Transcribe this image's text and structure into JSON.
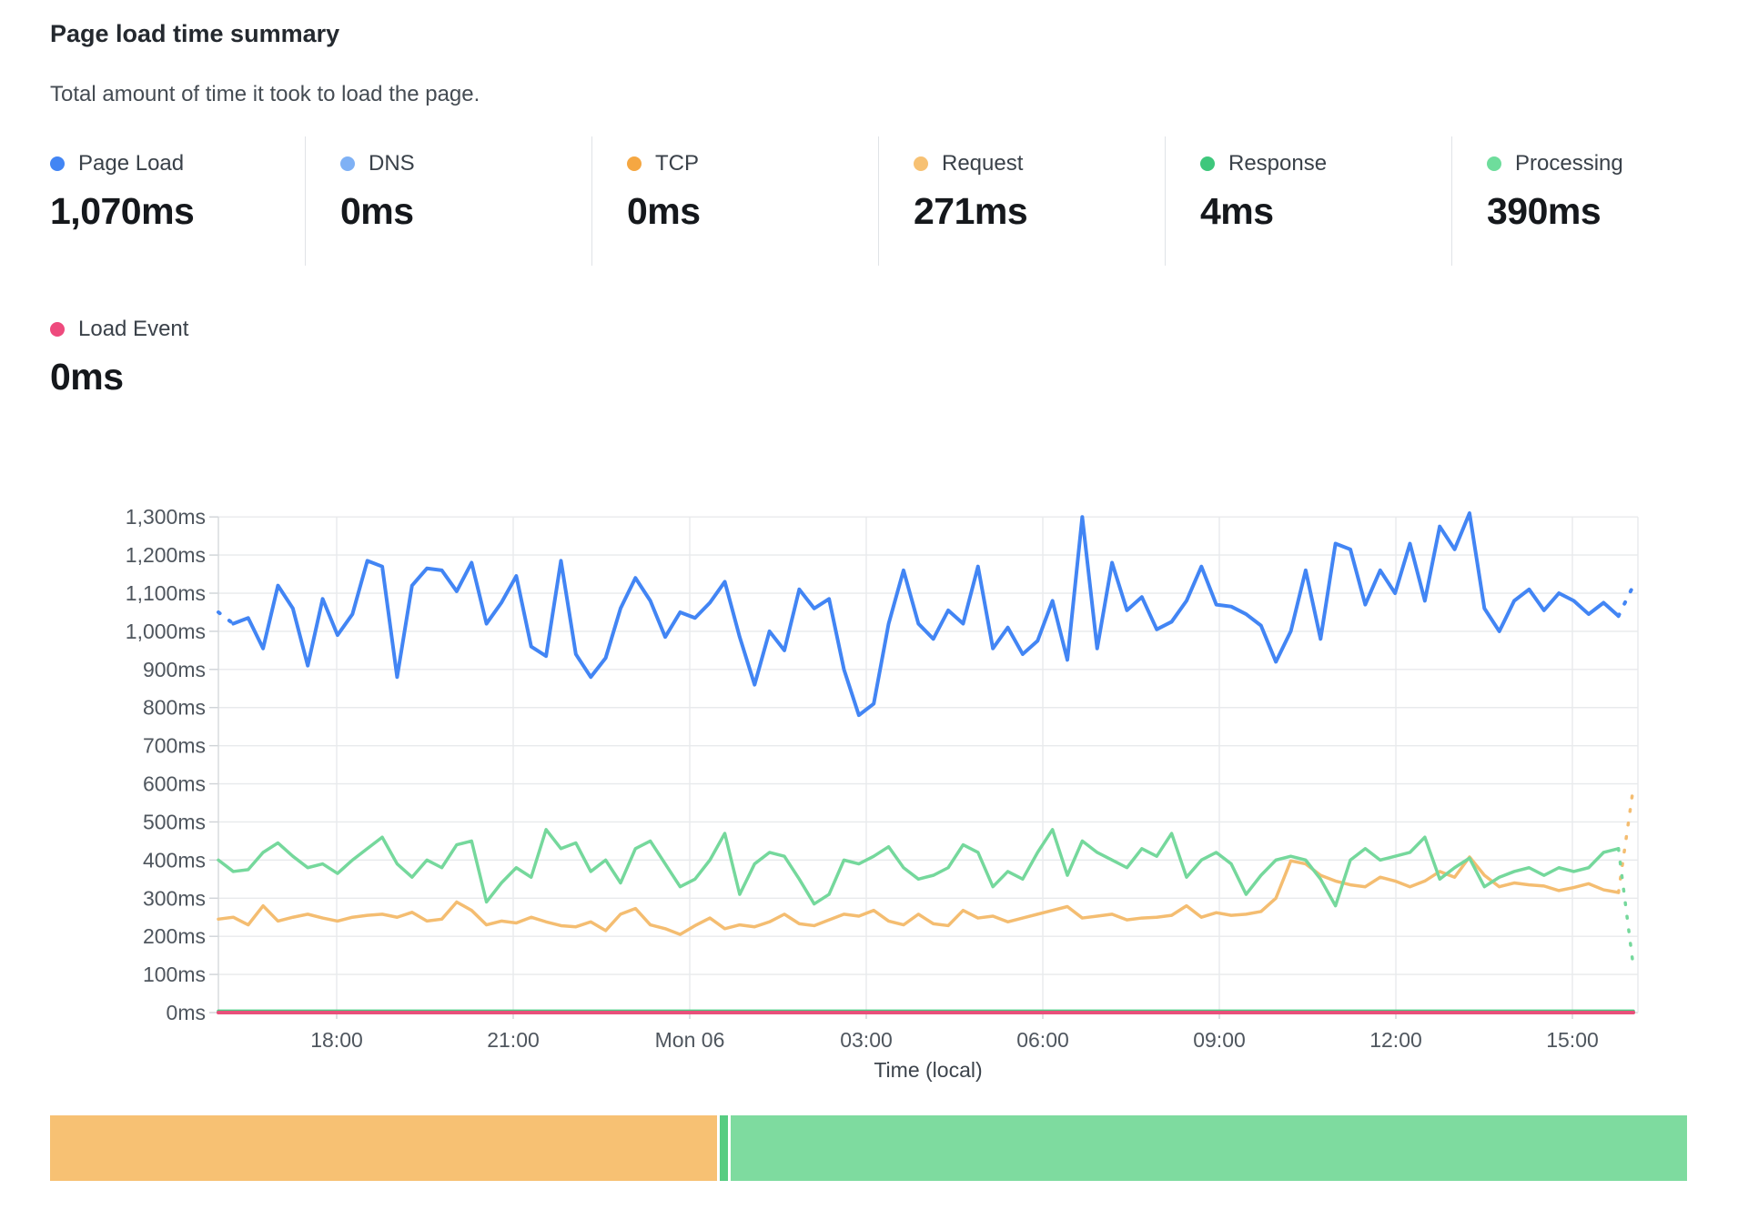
{
  "header": {
    "title": "Page load time summary",
    "subtitle": "Total amount of time it took to load the page."
  },
  "metrics": [
    {
      "label": "Page Load",
      "value": "1,070ms",
      "color": "#4285f4"
    },
    {
      "label": "DNS",
      "value": "0ms",
      "color": "#7fb1f5"
    },
    {
      "label": "TCP",
      "value": "0ms",
      "color": "#f5a742"
    },
    {
      "label": "Request",
      "value": "271ms",
      "color": "#f7c173"
    },
    {
      "label": "Response",
      "value": "4ms",
      "color": "#3ec77c"
    },
    {
      "label": "Processing",
      "value": "390ms",
      "color": "#6edd9c"
    }
  ],
  "load_event": {
    "label": "Load Event",
    "value": "0ms",
    "color": "#ee4a7d"
  },
  "chart_data": {
    "type": "line",
    "title": "Page load time summary",
    "xlabel": "Time (local)",
    "ylabel": "",
    "ylim": [
      0,
      1300
    ],
    "grid": true,
    "legend_position": "top",
    "y_ticks": [
      "0ms",
      "100ms",
      "200ms",
      "300ms",
      "400ms",
      "500ms",
      "600ms",
      "700ms",
      "800ms",
      "900ms",
      "1,000ms",
      "1,100ms",
      "1,200ms",
      "1,300ms"
    ],
    "x_ticks": [
      "18:00",
      "21:00",
      "Mon 06",
      "03:00",
      "06:00",
      "09:00",
      "12:00",
      "15:00"
    ],
    "series": [
      {
        "name": "DNS",
        "color": "#7fb1f5",
        "flat": 0
      },
      {
        "name": "TCP",
        "color": "#f5a742",
        "flat": 0
      },
      {
        "name": "Response",
        "color": "#4cc981",
        "flat": 4
      },
      {
        "name": "Request",
        "color": "#f4bd71",
        "dashed_tail": true,
        "values": [
          245,
          250,
          230,
          280,
          240,
          250,
          258,
          248,
          240,
          250,
          255,
          258,
          250,
          263,
          240,
          245,
          290,
          268,
          230,
          240,
          235,
          250,
          238,
          228,
          225,
          238,
          215,
          258,
          273,
          230,
          220,
          205,
          228,
          248,
          220,
          230,
          225,
          238,
          258,
          233,
          228,
          243,
          258,
          253,
          268,
          240,
          230,
          258,
          233,
          228,
          268,
          248,
          253,
          238,
          248,
          258,
          268,
          278,
          248,
          253,
          258,
          243,
          248,
          250,
          255,
          280,
          250,
          262,
          255,
          258,
          265,
          300,
          398,
          390,
          360,
          345,
          335,
          330,
          355,
          345,
          330,
          345,
          370,
          355,
          408,
          360,
          330,
          340,
          335,
          332,
          320,
          328,
          338,
          322,
          315,
          590
        ]
      },
      {
        "name": "Processing",
        "color": "#75d89c",
        "dashed_tail": true,
        "values": [
          400,
          370,
          375,
          420,
          445,
          410,
          380,
          390,
          365,
          400,
          430,
          460,
          390,
          355,
          400,
          380,
          440,
          450,
          290,
          340,
          380,
          355,
          480,
          430,
          445,
          370,
          400,
          340,
          430,
          450,
          390,
          330,
          350,
          400,
          470,
          310,
          390,
          420,
          410,
          350,
          285,
          310,
          400,
          390,
          410,
          435,
          380,
          350,
          360,
          380,
          440,
          420,
          330,
          370,
          350,
          420,
          480,
          360,
          450,
          420,
          400,
          380,
          430,
          410,
          470,
          355,
          400,
          420,
          390,
          310,
          360,
          400,
          410,
          400,
          350,
          280,
          400,
          430,
          400,
          410,
          420,
          460,
          350,
          380,
          405,
          330,
          355,
          370,
          380,
          360,
          380,
          370,
          380,
          420,
          430,
          120
        ]
      },
      {
        "name": "Page Load",
        "color": "#4285f4",
        "dashed_head": true,
        "dashed_tail": true,
        "values": [
          1050,
          1020,
          1035,
          955,
          1120,
          1060,
          910,
          1085,
          990,
          1045,
          1185,
          1170,
          880,
          1120,
          1165,
          1160,
          1105,
          1180,
          1020,
          1075,
          1145,
          960,
          935,
          1185,
          940,
          880,
          930,
          1060,
          1140,
          1080,
          985,
          1050,
          1035,
          1075,
          1130,
          985,
          860,
          1000,
          950,
          1110,
          1060,
          1085,
          900,
          780,
          810,
          1020,
          1160,
          1020,
          980,
          1055,
          1020,
          1170,
          955,
          1010,
          940,
          975,
          1080,
          925,
          1300,
          955,
          1180,
          1055,
          1090,
          1005,
          1025,
          1080,
          1170,
          1070,
          1065,
          1045,
          1015,
          920,
          1000,
          1160,
          980,
          1230,
          1215,
          1070,
          1160,
          1100,
          1230,
          1080,
          1275,
          1215,
          1310,
          1060,
          1000,
          1080,
          1110,
          1055,
          1100,
          1080,
          1045,
          1075,
          1040,
          1120
        ]
      },
      {
        "name": "Load Event",
        "color": "#e8507a",
        "flat": 0
      }
    ]
  },
  "footer_bar": {
    "segments": [
      {
        "color": "#f7c173",
        "width_pct": 40.7
      },
      {
        "color": "#57cd82",
        "width_pct": 0.5
      },
      {
        "color": "#7edb9f",
        "width_pct": 58.3
      }
    ]
  }
}
